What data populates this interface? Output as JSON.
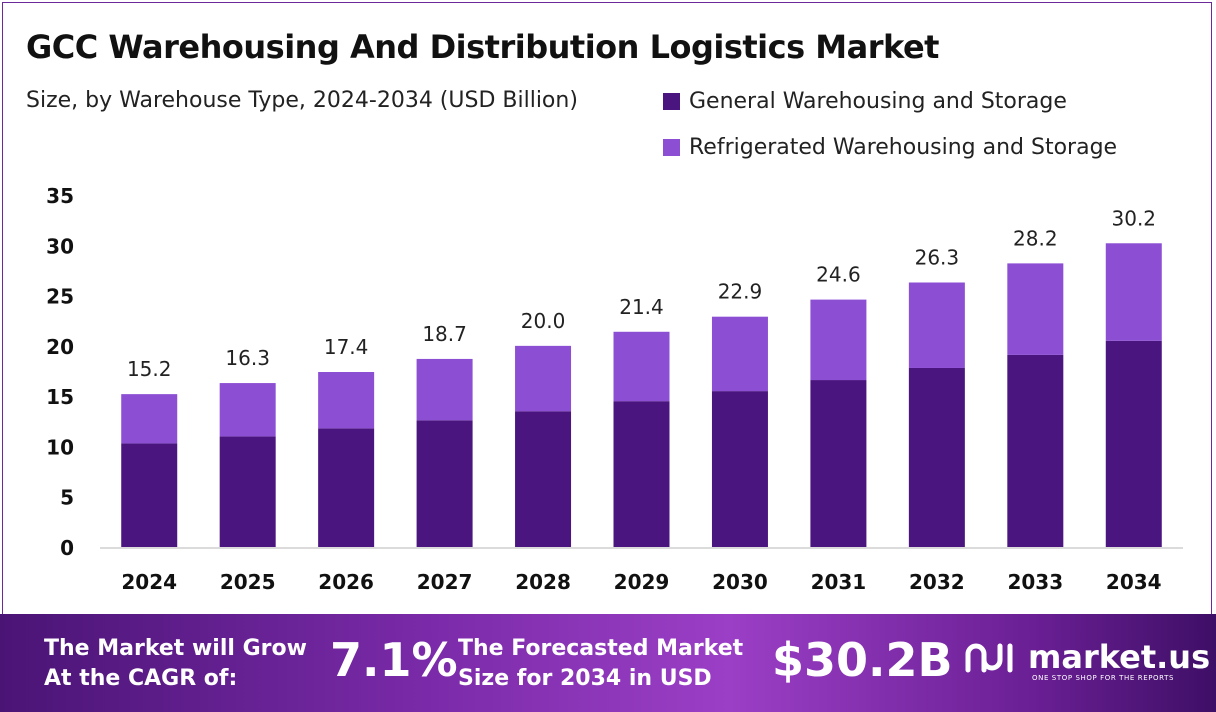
{
  "title": "GCC Warehousing And Distribution Logistics Market",
  "subtitle": "Size, by Warehouse Type, 2024-2034 (USD Billion)",
  "colors": {
    "general": "#4b1580",
    "refrigerated": "#8c4fd4",
    "accent": "#6a2a9a"
  },
  "chart_data": {
    "type": "bar",
    "stacked": true,
    "categories": [
      "2024",
      "2025",
      "2026",
      "2027",
      "2028",
      "2029",
      "2030",
      "2031",
      "2032",
      "2033",
      "2034"
    ],
    "series": [
      {
        "name": "General Warehousing and Storage",
        "values": [
          10.3,
          11.0,
          11.8,
          12.6,
          13.5,
          14.5,
          15.5,
          16.6,
          17.8,
          19.1,
          20.5
        ]
      },
      {
        "name": "Refrigerated Warehousing and Storage",
        "values": [
          4.9,
          5.3,
          5.6,
          6.1,
          6.5,
          6.9,
          7.4,
          8.0,
          8.5,
          9.1,
          9.7
        ]
      }
    ],
    "totals": [
      "15.2",
      "16.3",
      "17.4",
      "18.7",
      "20.0",
      "21.4",
      "22.9",
      "24.6",
      "26.3",
      "28.2",
      "30.2"
    ],
    "ylim": [
      0,
      35
    ],
    "yticks": [
      "0",
      "5",
      "10",
      "15",
      "20",
      "25",
      "30",
      "35"
    ],
    "legend_position": "top-right",
    "grid": false
  },
  "banner": {
    "cagr_line1": "The Market will Grow",
    "cagr_line2": "At the CAGR of:",
    "cagr_value": "7.1%",
    "forecast_line1": "The Forecasted Market",
    "forecast_line2": "Size for 2034 in USD",
    "forecast_value": "$30.2B",
    "logo_text": "market.us",
    "logo_tagline": "ONE STOP SHOP FOR THE REPORTS",
    "logo_icon": "market-us-logo-icon"
  }
}
